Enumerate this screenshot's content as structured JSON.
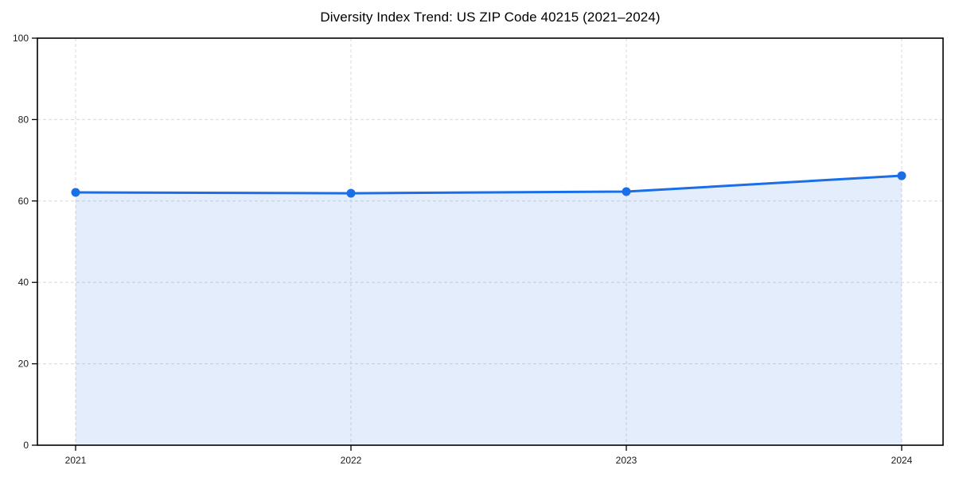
{
  "header": {
    "title": "Diversity Index Trend: US ZIP Code 40215 (2021–2024)"
  },
  "chart_data": {
    "type": "area",
    "title": "Diversity Index Trend: US ZIP Code 40215 (2021–2024)",
    "x": [
      "2021",
      "2022",
      "2023",
      "2024"
    ],
    "series": [
      {
        "name": "Diversity Index",
        "values": [
          62.1,
          61.9,
          62.3,
          66.2
        ]
      }
    ],
    "xlabel": "",
    "ylabel": "",
    "ylim": [
      0,
      100
    ],
    "yticks": [
      0,
      20,
      40,
      60,
      80,
      100
    ],
    "grid": "dashed",
    "legend": "none",
    "colors": {
      "line": "#1a6fe8",
      "marker": "#1a6fe8",
      "fill": "#1a6fe8",
      "fill_opacity": 0.12,
      "gridline": "#dcdcdc",
      "spine": "#000000",
      "background": "#ffffff",
      "text": "#1a1a1a"
    }
  }
}
